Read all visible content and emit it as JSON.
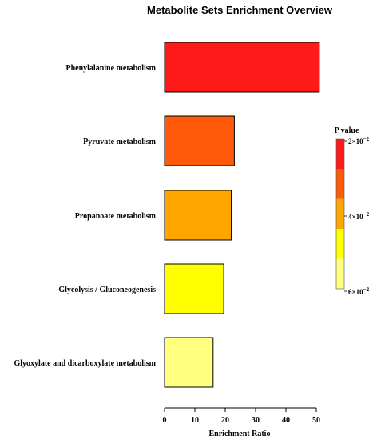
{
  "chart_data": {
    "type": "bar",
    "orientation": "horizontal",
    "title": "Metabolite Sets Enrichment Overview",
    "xlabel": "Enrichment Ratio",
    "ylabel": "",
    "xlim": [
      0,
      50
    ],
    "xticks": [
      0,
      10,
      20,
      30,
      40,
      50
    ],
    "grid": false,
    "categories": [
      "Phenylalanine metabolism",
      "Pyruvate metabolism",
      "Propanoate metabolism",
      "Glycolysis / Gluconeogenesis",
      "Glyoxylate and dicarboxylate metabolism"
    ],
    "values": [
      51,
      23,
      22,
      19.5,
      16
    ],
    "colors": [
      "#ff1a1a",
      "#ff5a0a",
      "#ffa500",
      "#ffff00",
      "#ffff80"
    ],
    "legend": {
      "title": "P value",
      "placement": "right",
      "ticks": [
        {
          "label": "2×10⁻²",
          "base": "2×10",
          "exp": "−2",
          "value": 0.02
        },
        {
          "label": "4×10⁻²",
          "base": "4×10",
          "exp": "−2",
          "value": 0.04
        },
        {
          "label": "6×10⁻²",
          "base": "6×10",
          "exp": "−2",
          "value": 0.06
        }
      ],
      "colors": [
        "#ff1a1a",
        "#ff5a0a",
        "#ffa500",
        "#ffff00",
        "#ffff80"
      ]
    }
  }
}
